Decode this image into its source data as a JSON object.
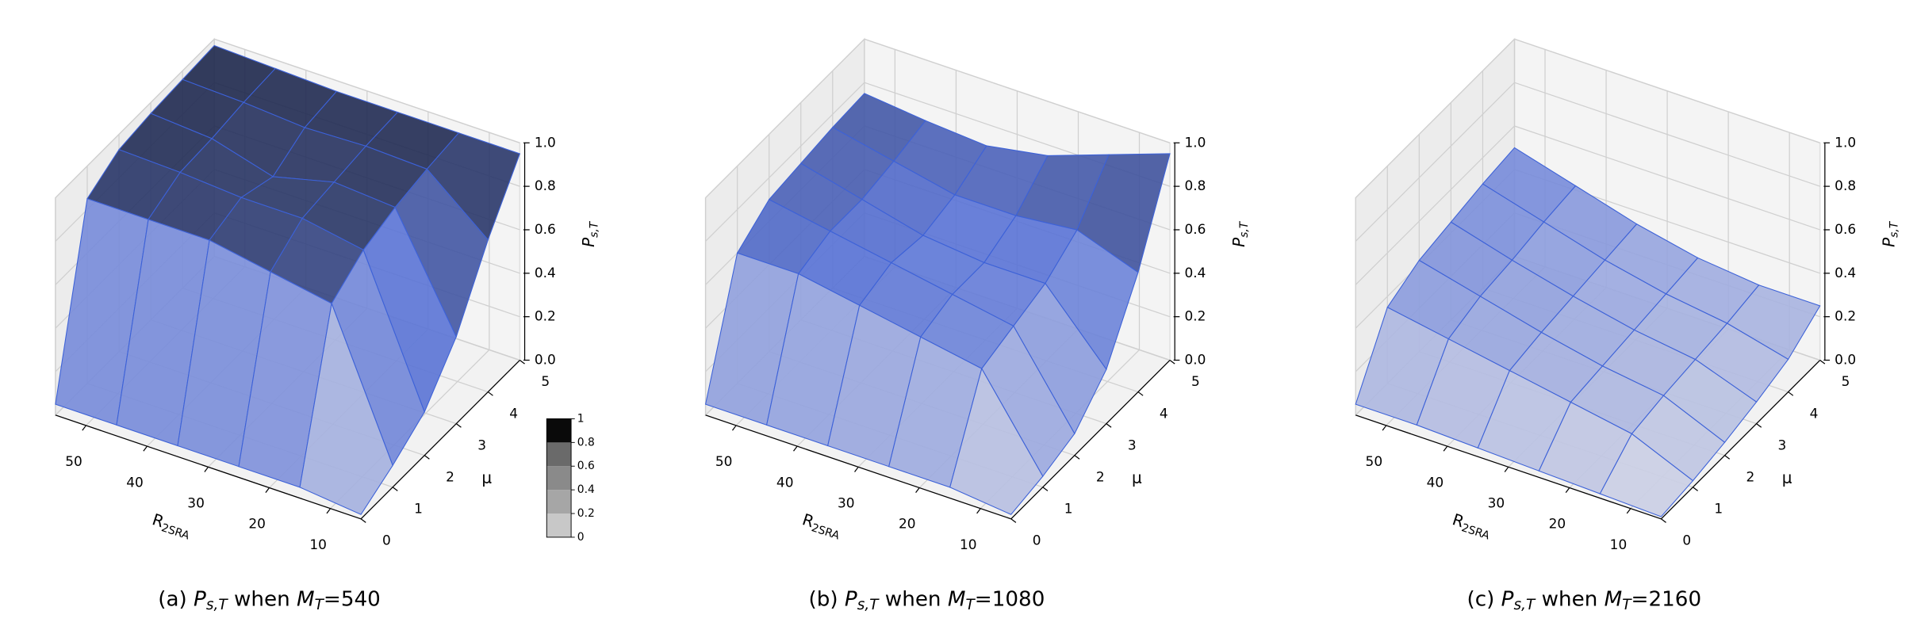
{
  "chart_data": [
    {
      "type": "surface",
      "caption": {
        "prefix": "(a) ",
        "symbol": "P",
        "symbol_sub": "s,T",
        "middle": " when ",
        "var": "M",
        "var_sub": "T",
        "rest": "=540"
      },
      "xlabel": {
        "symbol": "R",
        "sub": "2SRA"
      },
      "ylabel": "μ",
      "zlabel": {
        "symbol": "P",
        "sub": "s,T"
      },
      "x": [
        55,
        45,
        35,
        25,
        15,
        5
      ],
      "y": [
        0,
        1,
        2,
        3,
        4,
        5
      ],
      "z": [
        [
          0.05,
          0.05,
          0.05,
          0.05,
          0.05,
          0.02
        ],
        [
          0.85,
          0.85,
          0.85,
          0.8,
          0.75,
          0.1
        ],
        [
          0.93,
          0.92,
          0.9,
          0.9,
          0.85,
          0.2
        ],
        [
          0.95,
          0.93,
          0.85,
          0.92,
          0.9,
          0.4
        ],
        [
          0.96,
          0.95,
          0.93,
          0.94,
          0.93,
          0.7
        ],
        [
          0.97,
          0.96,
          0.95,
          0.95,
          0.95,
          0.95
        ]
      ],
      "xlim": [
        5,
        55
      ],
      "ylim": [
        0,
        5
      ],
      "zlim": [
        0,
        1
      ],
      "xticks": [
        10,
        20,
        30,
        40,
        50
      ],
      "yticks": [
        0,
        1,
        2,
        3,
        4,
        5
      ],
      "zticks": [
        {
          "value": 0,
          "label": "0.0"
        },
        {
          "value": 0.2,
          "label": "0.2"
        },
        {
          "value": 0.4,
          "label": "0.4"
        },
        {
          "value": 0.6,
          "label": "0.6"
        },
        {
          "value": 0.8,
          "label": "0.8"
        },
        {
          "value": 1,
          "label": "1.0"
        }
      ],
      "surface_colors": [
        "#d6d8e6",
        "#5a74d6",
        "#1c2340"
      ],
      "mesh_color": "#3d62d8",
      "grid": true,
      "colorbar": {
        "ticks": [
          0,
          0.2,
          0.4,
          0.6,
          0.8,
          1
        ],
        "colors": [
          "#c8c8c8",
          "#a6a6a6",
          "#8a8a8a",
          "#6a6a6a",
          "#0a0a0a"
        ]
      }
    },
    {
      "type": "surface",
      "caption": {
        "prefix": "(b) ",
        "symbol": "P",
        "symbol_sub": "s,T",
        "middle": " when ",
        "var": "M",
        "var_sub": "T",
        "rest": "=1080"
      },
      "xlabel": {
        "symbol": "R",
        "sub": "2SRA"
      },
      "ylabel": "μ",
      "zlabel": {
        "symbol": "P",
        "sub": "s,T"
      },
      "x": [
        55,
        45,
        35,
        25,
        15,
        5
      ],
      "y": [
        0,
        1,
        2,
        3,
        4,
        5
      ],
      "z": [
        [
          0.05,
          0.05,
          0.05,
          0.05,
          0.05,
          0.02
        ],
        [
          0.6,
          0.6,
          0.55,
          0.5,
          0.45,
          0.05
        ],
        [
          0.7,
          0.65,
          0.6,
          0.55,
          0.5,
          0.1
        ],
        [
          0.72,
          0.65,
          0.58,
          0.55,
          0.55,
          0.25
        ],
        [
          0.74,
          0.68,
          0.62,
          0.62,
          0.65,
          0.55
        ],
        [
          0.75,
          0.72,
          0.7,
          0.75,
          0.85,
          0.95
        ]
      ],
      "xlim": [
        5,
        55
      ],
      "ylim": [
        0,
        5
      ],
      "zlim": [
        0,
        1
      ],
      "xticks": [
        10,
        20,
        30,
        40,
        50
      ],
      "yticks": [
        0,
        1,
        2,
        3,
        4,
        5
      ],
      "zticks": [
        {
          "value": 0,
          "label": "0.0"
        },
        {
          "value": 0.2,
          "label": "0.2"
        },
        {
          "value": 0.4,
          "label": "0.4"
        },
        {
          "value": 0.6,
          "label": "0.6"
        },
        {
          "value": 0.8,
          "label": "0.8"
        },
        {
          "value": 1,
          "label": "1.0"
        }
      ],
      "surface_colors": [
        "#d6d8e6",
        "#5a74d6",
        "#1c2340"
      ],
      "mesh_color": "#3d62d8",
      "grid": true
    },
    {
      "type": "surface",
      "caption": {
        "prefix": "(c) ",
        "symbol": "P",
        "symbol_sub": "s,T",
        "middle": " when ",
        "var": "M",
        "var_sub": "T",
        "rest": "=2160"
      },
      "xlabel": {
        "symbol": "R",
        "sub": "2SRA"
      },
      "ylabel": "μ",
      "zlabel": {
        "symbol": "P",
        "sub": "s,T"
      },
      "x": [
        55,
        45,
        35,
        25,
        15,
        5
      ],
      "y": [
        0,
        1,
        2,
        3,
        4,
        5
      ],
      "z": [
        [
          0.05,
          0.05,
          0.04,
          0.03,
          0.02,
          0.01
        ],
        [
          0.35,
          0.3,
          0.25,
          0.2,
          0.15,
          0.03
        ],
        [
          0.42,
          0.35,
          0.28,
          0.22,
          0.18,
          0.06
        ],
        [
          0.45,
          0.37,
          0.3,
          0.24,
          0.2,
          0.1
        ],
        [
          0.48,
          0.4,
          0.32,
          0.26,
          0.22,
          0.15
        ],
        [
          0.5,
          0.42,
          0.34,
          0.28,
          0.25,
          0.25
        ]
      ],
      "xlim": [
        5,
        55
      ],
      "ylim": [
        0,
        5
      ],
      "zlim": [
        0,
        1
      ],
      "xticks": [
        10,
        20,
        30,
        40,
        50
      ],
      "yticks": [
        0,
        1,
        2,
        3,
        4,
        5
      ],
      "zticks": [
        {
          "value": 0,
          "label": "0.0"
        },
        {
          "value": 0.2,
          "label": "0.2"
        },
        {
          "value": 0.4,
          "label": "0.4"
        },
        {
          "value": 0.6,
          "label": "0.6"
        },
        {
          "value": 0.8,
          "label": "0.8"
        },
        {
          "value": 1,
          "label": "1.0"
        }
      ],
      "surface_colors": [
        "#d6d8e6",
        "#5a74d6",
        "#1c2340"
      ],
      "mesh_color": "#3d62d8",
      "grid": true
    }
  ]
}
